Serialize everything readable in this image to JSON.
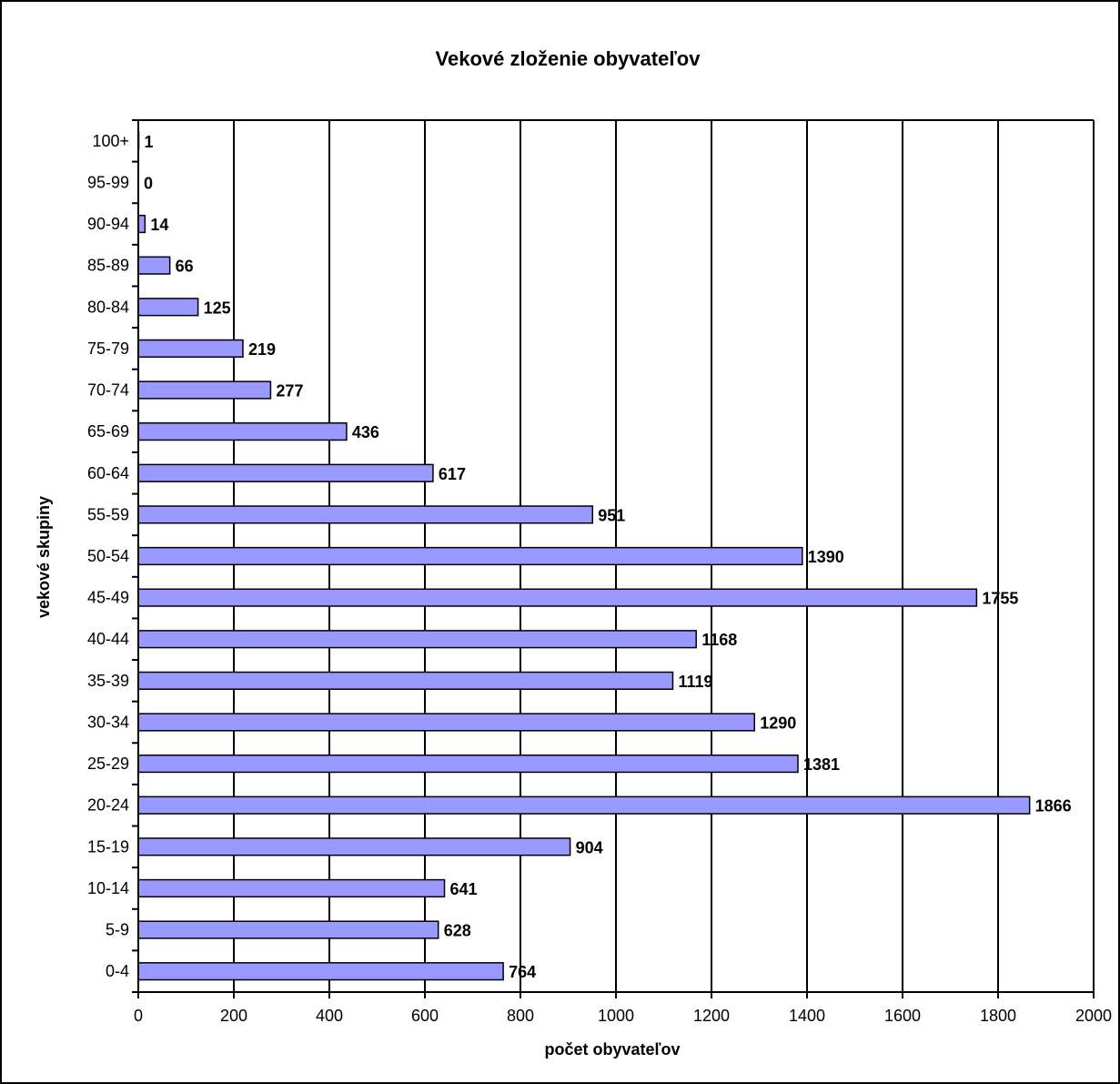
{
  "chart_data": {
    "type": "bar",
    "orientation": "horizontal",
    "title": "Vekové zloženie obyvateľov",
    "xlabel": "počet obyvateľov",
    "ylabel": "vekové skupiny",
    "xlim": [
      0,
      2000
    ],
    "x_ticks": [
      "0",
      "200",
      "400",
      "600",
      "800",
      "1000",
      "1200",
      "1400",
      "1600",
      "1800",
      "2000"
    ],
    "grid": "vertical",
    "legend": "none",
    "bar_color": "#9999ff",
    "categories": [
      "0-4",
      "5-9",
      "10-14",
      "15-19",
      "20-24",
      "25-29",
      "30-34",
      "35-39",
      "40-44",
      "45-49",
      "50-54",
      "55-59",
      "60-64",
      "65-69",
      "70-74",
      "75-79",
      "80-84",
      "85-89",
      "90-94",
      "95-99",
      "100+"
    ],
    "values": [
      764,
      628,
      641,
      904,
      1866,
      1381,
      1290,
      1119,
      1168,
      1755,
      1390,
      951,
      617,
      436,
      277,
      219,
      125,
      66,
      14,
      0,
      1
    ],
    "data_labels": [
      "764",
      "628",
      "641",
      "904",
      "1866",
      "1381",
      "1290",
      "1119",
      "1168",
      "1755",
      "1390",
      "951",
      "617",
      "436",
      "277",
      "219",
      "125",
      "66",
      "14",
      "0",
      "1"
    ]
  }
}
